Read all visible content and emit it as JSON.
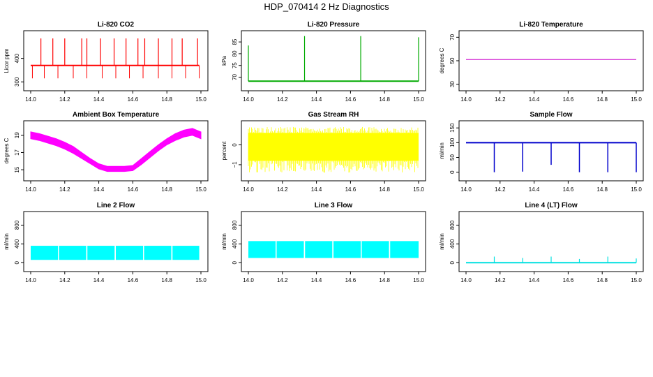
{
  "title": "HDP_070414  2 Hz Diagnostics",
  "chart_data": [
    {
      "type": "line",
      "title": "Li-820 CO2",
      "ylabel": "Licor ppm",
      "xlim": [
        14.0,
        15.0
      ],
      "ylim": [
        280,
        500
      ],
      "xticks": [
        14.0,
        14.2,
        14.4,
        14.6,
        14.8,
        15.0
      ],
      "xtick_labels": [
        "14.0",
        "14.2",
        "14.4",
        "14.6",
        "14.8",
        "15.0"
      ],
      "yticks": [
        300,
        400
      ],
      "ytick_labels": [
        "300",
        "400"
      ],
      "color": "#ff0000",
      "series": [
        {
          "baseline": 370,
          "spikes_up": [
            14.06,
            14.13,
            14.2,
            14.3,
            14.33,
            14.41,
            14.49,
            14.56,
            14.63,
            14.67,
            14.75,
            14.83,
            14.89,
            14.98
          ],
          "spike_up_value": 485,
          "spikes_down": [
            14.01,
            14.08,
            14.16,
            14.25,
            14.33,
            14.42,
            14.5,
            14.58,
            14.66,
            14.75,
            14.83,
            14.91,
            14.99
          ],
          "spike_down_value": 315,
          "x_range": [
            14.0,
            14.99
          ]
        }
      ]
    },
    {
      "type": "line",
      "title": "Li-820 Pressure",
      "ylabel": "kPa",
      "xlim": [
        14.0,
        15.0
      ],
      "ylim": [
        66,
        88
      ],
      "xticks": [
        14.0,
        14.2,
        14.4,
        14.6,
        14.8,
        15.0
      ],
      "xtick_labels": [
        "14.0",
        "14.2",
        "14.4",
        "14.6",
        "14.8",
        "15.0"
      ],
      "yticks": [
        70,
        75,
        80,
        85
      ],
      "ytick_labels": [
        "70",
        "75",
        "80",
        "85"
      ],
      "color": "#00aa00",
      "series": [
        {
          "baseline": 68.3,
          "spikes_up": [
            14.0,
            14.33,
            14.66,
            15.0
          ],
          "spike_up_values": [
            83.5,
            87.5,
            87.5,
            87.0
          ],
          "x_range": [
            14.0,
            15.0
          ]
        }
      ]
    },
    {
      "type": "line",
      "title": "Li-820 Temperature",
      "ylabel": "degrees C",
      "xlim": [
        14.0,
        15.0
      ],
      "ylim": [
        28,
        72
      ],
      "xticks": [
        14.0,
        14.2,
        14.4,
        14.6,
        14.8,
        15.0
      ],
      "xtick_labels": [
        "14.0",
        "14.2",
        "14.4",
        "14.6",
        "14.8",
        "15.0"
      ],
      "yticks": [
        30,
        50,
        70
      ],
      "ytick_labels": [
        "30",
        "50",
        "70"
      ],
      "color": "#cc00cc",
      "series": [
        {
          "x": [
            14.0,
            15.0
          ],
          "y": [
            51,
            51
          ]
        }
      ]
    },
    {
      "type": "line",
      "title": "Ambient Box Temperature",
      "ylabel": "degrees C",
      "xlim": [
        14.0,
        15.0
      ],
      "ylim": [
        14.2,
        20.2
      ],
      "xticks": [
        14.0,
        14.2,
        14.4,
        14.6,
        14.8,
        15.0
      ],
      "xtick_labels": [
        "14.0",
        "14.2",
        "14.4",
        "14.6",
        "14.8",
        "15.0"
      ],
      "yticks": [
        15,
        17,
        19
      ],
      "ytick_labels": [
        "15",
        "17",
        "19"
      ],
      "color": "#ff00ff",
      "series": [
        {
          "x": [
            14.0,
            14.05,
            14.1,
            14.15,
            14.2,
            14.25,
            14.3,
            14.35,
            14.4,
            14.45,
            14.5,
            14.55,
            14.6,
            14.65,
            14.7,
            14.75,
            14.8,
            14.85,
            14.9,
            14.95,
            15.0
          ],
          "y_low": [
            18.6,
            18.4,
            18.1,
            17.8,
            17.4,
            16.9,
            16.3,
            15.7,
            15.1,
            14.8,
            14.8,
            14.8,
            14.9,
            15.6,
            16.4,
            17.2,
            17.9,
            18.4,
            18.8,
            19.0,
            18.6
          ],
          "y_high": [
            19.4,
            19.2,
            18.9,
            18.6,
            18.2,
            17.7,
            17.0,
            16.3,
            15.7,
            15.4,
            15.4,
            15.4,
            15.5,
            16.3,
            17.1,
            17.9,
            18.6,
            19.2,
            19.6,
            19.8,
            19.4
          ]
        }
      ]
    },
    {
      "type": "line",
      "title": "Gas Stream RH",
      "ylabel": "percent",
      "xlim": [
        14.0,
        15.0
      ],
      "ylim": [
        -1.6,
        1.0
      ],
      "xticks": [
        14.0,
        14.2,
        14.4,
        14.6,
        14.8,
        15.0
      ],
      "xtick_labels": [
        "14.0",
        "14.2",
        "14.4",
        "14.6",
        "14.8",
        "15.0"
      ],
      "yticks": [
        -1.0,
        0.0
      ],
      "ytick_labels": [
        "−1",
        "0"
      ],
      "color": "#ffff00",
      "series": [
        {
          "x_range": [
            14.0,
            15.0
          ],
          "y_band": [
            -0.8,
            0.6
          ],
          "y_extreme": [
            -1.4,
            0.9
          ]
        }
      ]
    },
    {
      "type": "line",
      "title": "Sample Flow",
      "ylabel": "ml/min",
      "xlim": [
        14.0,
        15.0
      ],
      "ylim": [
        -15,
        160
      ],
      "xticks": [
        14.0,
        14.2,
        14.4,
        14.6,
        14.8,
        15.0
      ],
      "xtick_labels": [
        "14.0",
        "14.2",
        "14.4",
        "14.6",
        "14.8",
        "15.0"
      ],
      "yticks": [
        0,
        50,
        100,
        150
      ],
      "ytick_labels": [
        "0",
        "50",
        "100",
        "150"
      ],
      "color": "#0000cc",
      "series": [
        {
          "baseline": 100,
          "drops": [
            14.166,
            14.333,
            14.5,
            14.666,
            14.833,
            15.0
          ],
          "drop_values": [
            0,
            2,
            25,
            0,
            0,
            0
          ],
          "x_range": [
            14.0,
            15.0
          ]
        }
      ]
    },
    {
      "type": "area",
      "title": "Line 2 Flow",
      "ylabel": "ml/min",
      "xlim": [
        14.0,
        15.0
      ],
      "ylim": [
        -100,
        1000
      ],
      "xticks": [
        14.0,
        14.2,
        14.4,
        14.6,
        14.8,
        15.0
      ],
      "xtick_labels": [
        "14.0",
        "14.2",
        "14.4",
        "14.6",
        "14.8",
        "15.0"
      ],
      "yticks": [
        0,
        400,
        800
      ],
      "ytick_labels": [
        "0",
        "400",
        "800"
      ],
      "color": "#00ffff",
      "series": [
        {
          "segments": [
            [
              14.0,
              14.16
            ],
            [
              14.166,
              14.326
            ],
            [
              14.333,
              14.493
            ],
            [
              14.5,
              14.66
            ],
            [
              14.666,
              14.826
            ],
            [
              14.833,
              14.99
            ]
          ],
          "y_low": 60,
          "y_high": 360
        }
      ]
    },
    {
      "type": "area",
      "title": "Line 3 Flow",
      "ylabel": "ml/min",
      "xlim": [
        14.0,
        15.0
      ],
      "ylim": [
        -100,
        1000
      ],
      "xticks": [
        14.0,
        14.2,
        14.4,
        14.6,
        14.8,
        15.0
      ],
      "xtick_labels": [
        "14.0",
        "14.2",
        "14.4",
        "14.6",
        "14.8",
        "15.0"
      ],
      "yticks": [
        0,
        400,
        800
      ],
      "ytick_labels": [
        "0",
        "400",
        "800"
      ],
      "color": "#00ffff",
      "series": [
        {
          "segments": [
            [
              14.0,
              14.16
            ],
            [
              14.166,
              14.326
            ],
            [
              14.333,
              14.493
            ],
            [
              14.5,
              14.66
            ],
            [
              14.666,
              14.826
            ],
            [
              14.833,
              15.0
            ]
          ],
          "y_low": 100,
          "y_high": 460
        }
      ]
    },
    {
      "type": "line",
      "title": "Line 4 (LT) Flow",
      "ylabel": "ml/min",
      "xlim": [
        14.0,
        15.0
      ],
      "ylim": [
        -100,
        1000
      ],
      "xticks": [
        14.0,
        14.2,
        14.4,
        14.6,
        14.8,
        15.0
      ],
      "xtick_labels": [
        "14.0",
        "14.2",
        "14.4",
        "14.6",
        "14.8",
        "15.0"
      ],
      "yticks": [
        0,
        400,
        800
      ],
      "ytick_labels": [
        "0",
        "400",
        "800"
      ],
      "color": "#00e0e0",
      "series": [
        {
          "baseline": 0,
          "spikes_up": [
            14.166,
            14.333,
            14.5,
            14.666,
            14.833,
            15.0
          ],
          "spike_up_values": [
            130,
            100,
            130,
            80,
            130,
            90
          ],
          "x_range": [
            14.0,
            15.0
          ]
        }
      ]
    }
  ]
}
